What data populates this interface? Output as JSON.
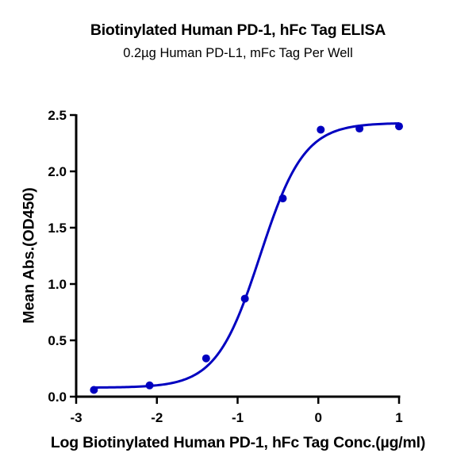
{
  "chart_data": {
    "type": "scatter",
    "title": "Biotinylated Human PD-1, hFc Tag ELISA",
    "subtitle": "0.2µg Human PD-L1, mFc Tag Per Well",
    "xlabel": "Log Biotinylated Human PD-1, hFc Tag Conc.(µg/ml)",
    "ylabel": "Mean Abs.(OD450)",
    "xlim": [
      -3,
      1
    ],
    "ylim": [
      0,
      2.5
    ],
    "x_ticks": [
      -3,
      -2,
      -1,
      0,
      1
    ],
    "x_tick_labels": [
      "-3",
      "-2",
      "-1",
      "0",
      "1"
    ],
    "y_ticks": [
      0,
      0.5,
      1.0,
      1.5,
      2.0,
      2.5
    ],
    "y_tick_labels": [
      "0.0",
      "0.5",
      "1.0",
      "1.5",
      "2.0",
      "2.5"
    ],
    "grid": false,
    "legend": "none",
    "series": [
      {
        "name": "Biotinylated Human PD-1, hFc Tag",
        "color": "#0000c0",
        "x": [
          -2.78,
          -2.09,
          -1.39,
          -0.91,
          -0.44,
          0.03,
          0.51,
          1.0
        ],
        "y": [
          0.06,
          0.1,
          0.34,
          0.87,
          1.76,
          2.37,
          2.38,
          2.4
        ],
        "fit": {
          "model": "4PL sigmoidal",
          "bottom": 0.08,
          "top": 2.43,
          "log_ec50": -0.72,
          "hill_slope": 1.6
        }
      }
    ]
  },
  "colors": {
    "series": "#0000c0",
    "axis": "#000000",
    "background": "#ffffff"
  }
}
